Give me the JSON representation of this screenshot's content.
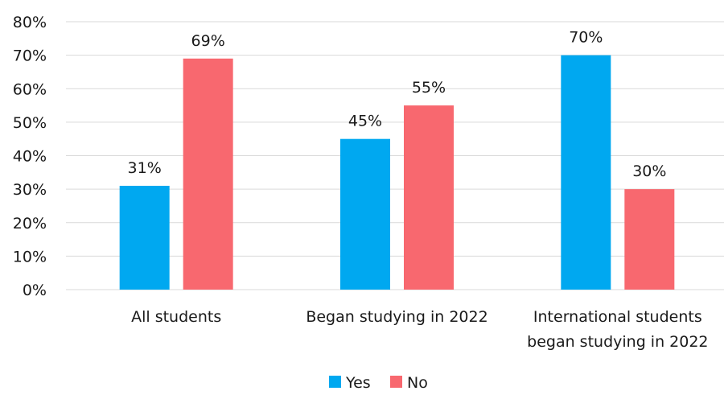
{
  "chart_data": {
    "type": "bar",
    "categories": [
      [
        "All students"
      ],
      [
        "Began studying in 2022"
      ],
      [
        "International students",
        "began studying in 2022"
      ]
    ],
    "series": [
      {
        "name": "Yes",
        "values": [
          31,
          45,
          70
        ],
        "labels": [
          "31%",
          "45%",
          "70%"
        ],
        "color": "#00A8F0"
      },
      {
        "name": "No",
        "values": [
          69,
          55,
          30
        ],
        "labels": [
          "69%",
          "55%",
          "30%"
        ],
        "color": "#F8686F"
      }
    ],
    "yticks": [
      0,
      10,
      20,
      30,
      40,
      50,
      60,
      70,
      80
    ],
    "ytick_labels": [
      "0%",
      "10%",
      "20%",
      "30%",
      "40%",
      "50%",
      "60%",
      "70%",
      "80%"
    ],
    "ylim": [
      0,
      80
    ],
    "grid": true,
    "legend_position": "bottom-center"
  }
}
